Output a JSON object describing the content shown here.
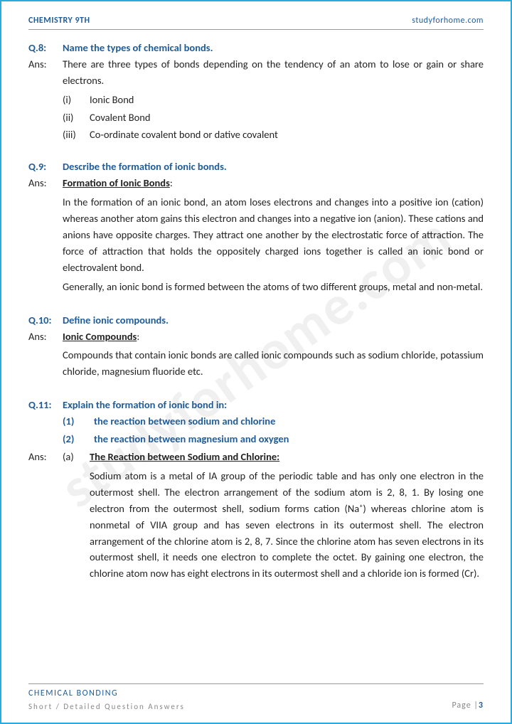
{
  "header": {
    "left": "CHEMISTRY 9TH",
    "right": "studyforhome.com"
  },
  "watermark": "studyforhome.com",
  "questions": [
    {
      "qnum": "Q.8:",
      "qtext": "Name the types of chemical bonds.",
      "ans_label": "Ans:",
      "ans_intro": "There are three types of bonds depending on the tendency of an atom to lose or gain or share electrons.",
      "list": [
        {
          "n": "(i)",
          "t": "Ionic Bond"
        },
        {
          "n": "(ii)",
          "t": "Covalent Bond"
        },
        {
          "n": "(iii)",
          "t": "Co-ordinate covalent bond or dative covalent"
        }
      ]
    },
    {
      "qnum": "Q.9:",
      "qtext": "Describe the formation of ionic bonds.",
      "ans_label": "Ans:",
      "heading": "Formation of Ionic Bonds",
      "paras": [
        "In the formation of an ionic bond, an atom loses electrons and changes into a positive ion (cation) whereas another atom gains this electron and changes into a negative ion (anion). These cations and anions have opposite charges. They attract one another by the electrostatic force of attraction. The force of attraction that holds the oppositely charged ions together is called an ionic bond or electrovalent bond.",
        "Generally, an ionic bond is formed between the atoms of two different groups, metal and non-metal."
      ]
    },
    {
      "qnum": "Q.10:",
      "qtext": "Define ionic compounds.",
      "ans_label": "Ans:",
      "heading": "Ionic Compounds",
      "paras": [
        "Compounds that contain ionic bonds are called ionic compounds such as sodium chloride, potassium chloride, magnesium fluoride etc."
      ]
    },
    {
      "qnum": "Q.11:",
      "qtext": "Explain the formation of ionic bond in:",
      "subparts": [
        {
          "n": "(1)",
          "t": "the reaction between sodium and chlorine"
        },
        {
          "n": "(2)",
          "t": "the reaction between magnesium and oxygen"
        }
      ],
      "ans_label": "Ans:",
      "subans": {
        "label": "(a)",
        "heading": "The Reaction between Sodium and Chlorine:",
        "text": "Sodium atom is a metal of IA group of the periodic table and has only one electron in the outermost shell. The electron arrangement of the sodium atom is 2, 8, 1. By losing one electron from the outermost shell, sodium forms cation (Na⁺) whereas chlorine atom is nonmetal of VIIA group and has seven electrons in its outermost shell. The electron arrangement of the chlorine atom is 2, 8, 7. Since the chlorine atom has seven electrons in its outermost shell, it needs one electron to complete the octet. By gaining one electron, the chlorine atom now has eight electrons in its outermost shell and a chloride ion is formed (Cr)."
      }
    }
  ],
  "footer": {
    "l1": "CHEMICAL BONDING",
    "l2": "Short / Detailed Question Answers",
    "page_label": "Page |",
    "page_num": "3"
  }
}
